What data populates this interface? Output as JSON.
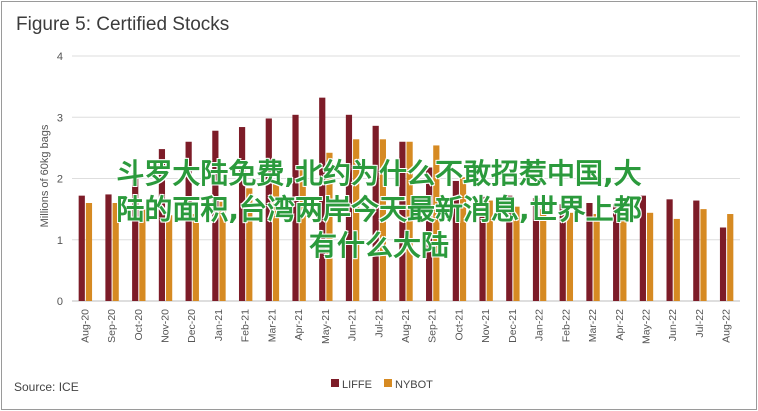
{
  "chart_data": {
    "type": "bar",
    "title": "Figure 5: Certified Stocks",
    "ylabel": "Millions of 60kg bags",
    "xlabel": "",
    "ylim": [
      0,
      4
    ],
    "yticks": [
      0,
      1,
      2,
      3,
      4
    ],
    "grid": true,
    "legend_position": "bottom",
    "categories": [
      "Aug-20",
      "Sep-20",
      "Oct-20",
      "Nov-20",
      "Dec-20",
      "Jan-21",
      "Feb-21",
      "Mar-21",
      "Apr-21",
      "May-21",
      "Jun-21",
      "Jul-21",
      "Aug-21",
      "Sep-21",
      "Oct-21",
      "Nov-21",
      "Dec-21",
      "Jan-22",
      "Feb-22",
      "Mar-22",
      "Apr-22",
      "May-22",
      "Jun-22",
      "Jul-22",
      "Aug-22"
    ],
    "series": [
      {
        "name": "LIFFE",
        "color": "#7d1c28",
        "values": [
          1.72,
          1.74,
          2.08,
          2.48,
          2.6,
          2.78,
          2.84,
          2.98,
          3.04,
          3.32,
          3.04,
          2.86,
          2.6,
          2.18,
          1.96,
          1.7,
          1.72,
          1.68,
          1.58,
          1.6,
          1.58,
          1.72,
          1.66,
          1.64,
          1.2
        ]
      },
      {
        "name": "NYBOT",
        "color": "#d68a22",
        "values": [
          1.6,
          1.6,
          1.5,
          1.4,
          1.42,
          1.62,
          1.84,
          1.96,
          2.16,
          2.42,
          2.64,
          2.64,
          2.6,
          2.54,
          2.02,
          1.64,
          1.54,
          1.5,
          1.44,
          1.42,
          1.4,
          1.44,
          1.34,
          1.5,
          1.42
        ]
      }
    ],
    "source": "Source: ICE"
  },
  "overlay": {
    "lines": [
      "斗罗大陆免费,北约为什么不敢招惹中国,大",
      "陆的面积,台湾两岸今天最新消息,世界上都",
      "有什么大陆"
    ]
  }
}
